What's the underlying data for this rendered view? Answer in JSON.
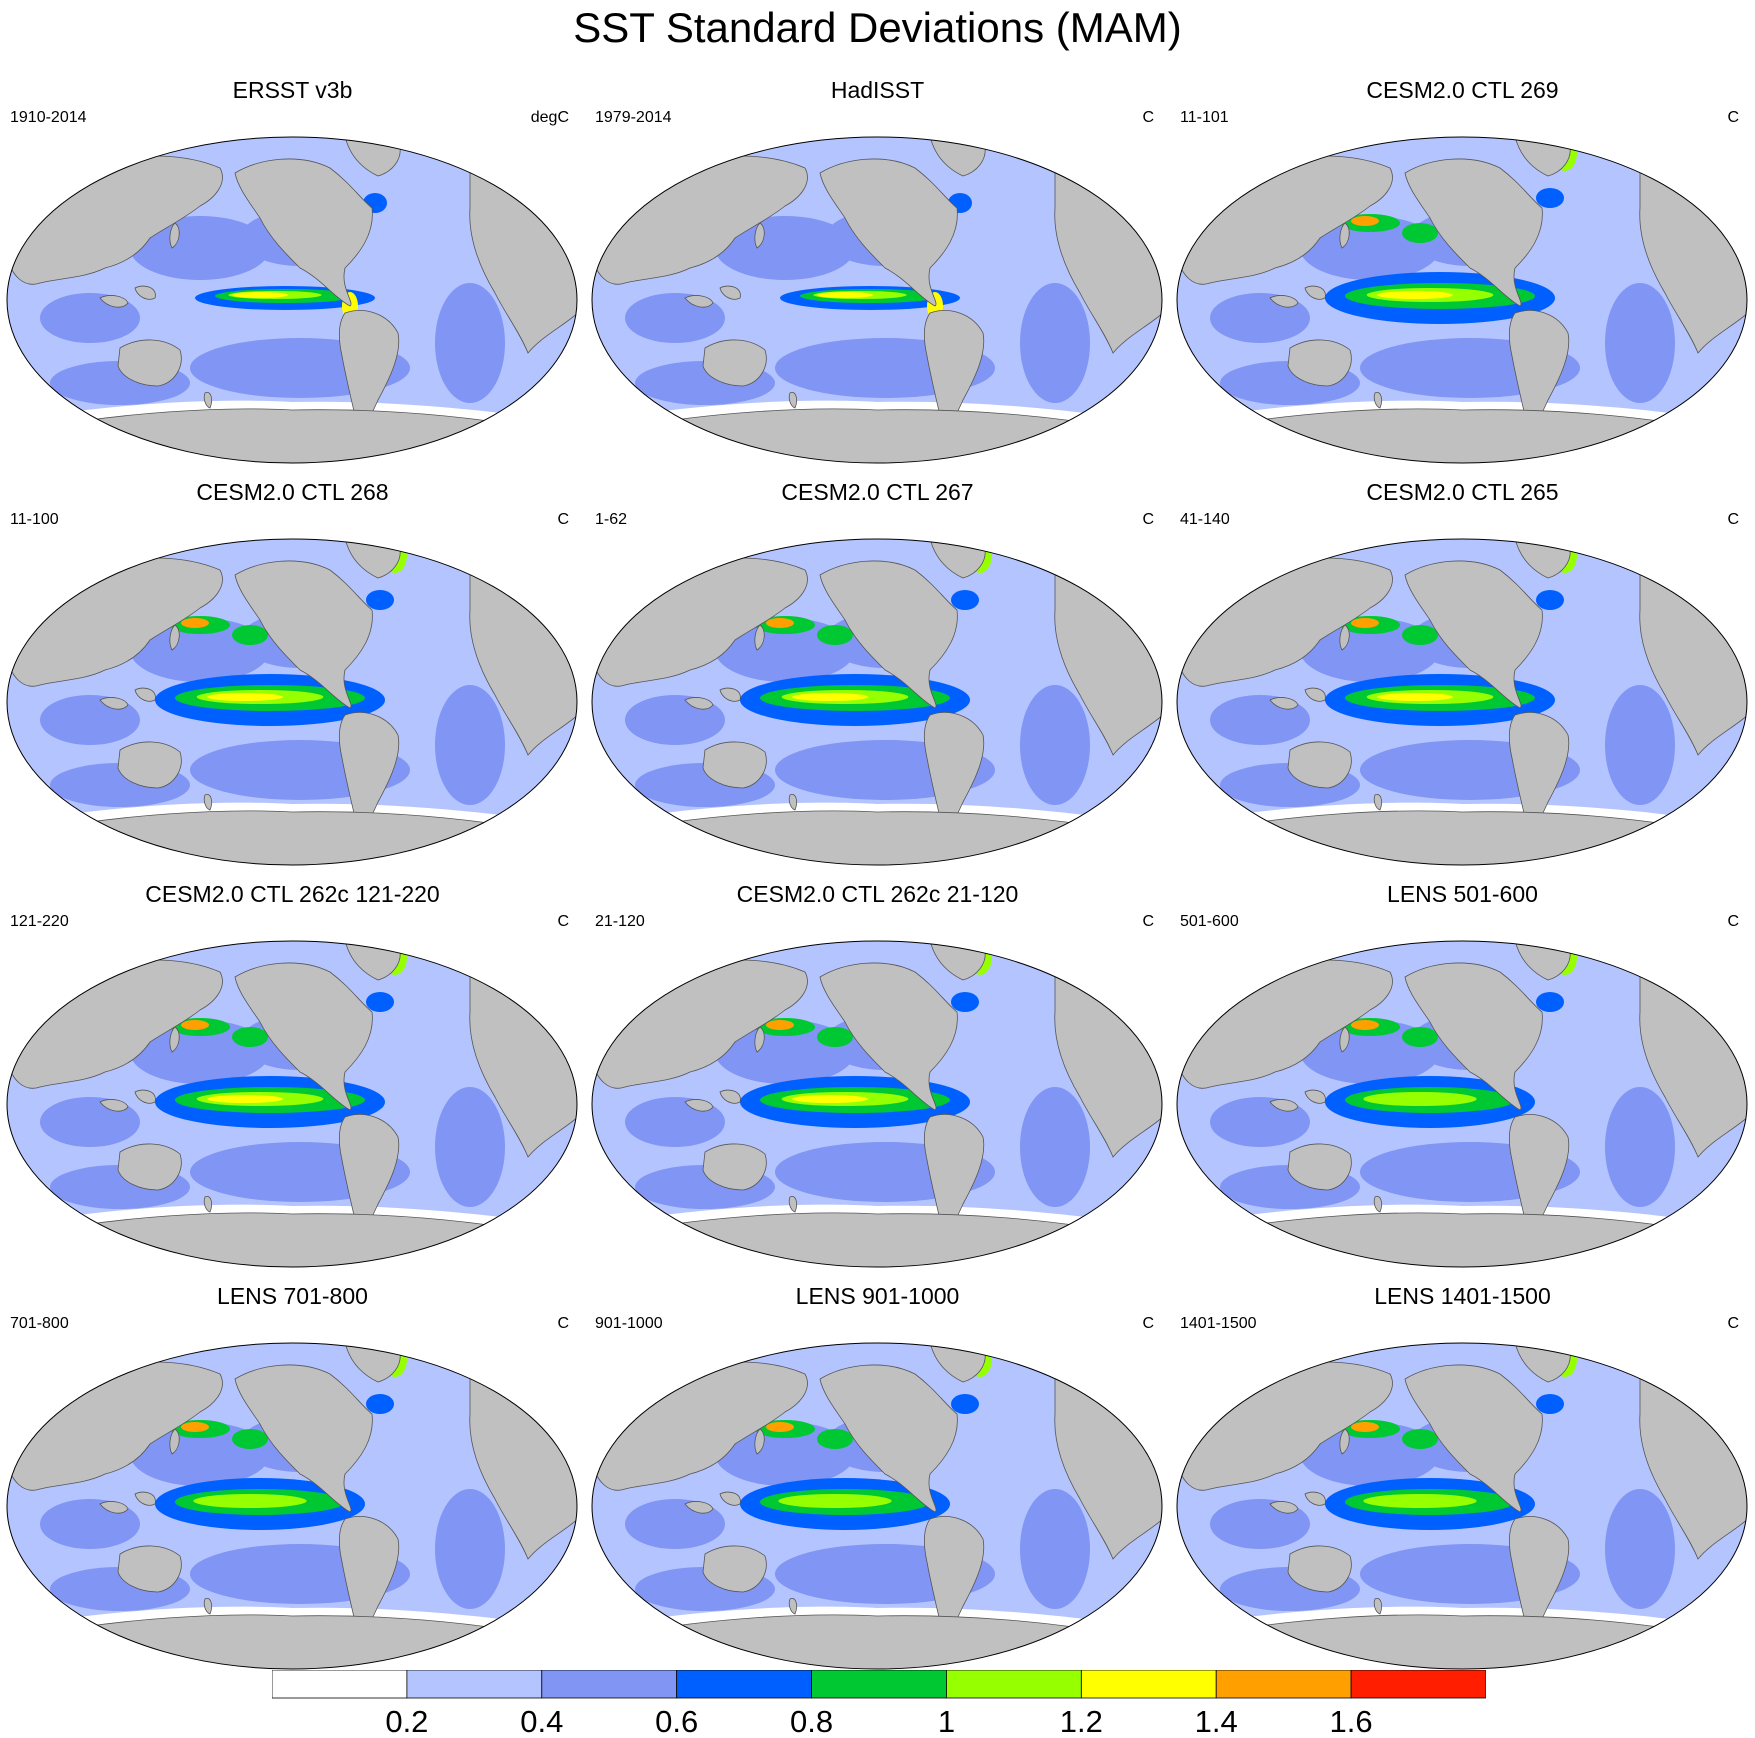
{
  "title": "SST Standard Deviations (MAM)",
  "panels": [
    {
      "title": "ERSST v3b",
      "period": "1910-2014",
      "unit": "degC"
    },
    {
      "title": "HadISST",
      "period": "1979-2014",
      "unit": "C"
    },
    {
      "title": "CESM2.0 CTL 269",
      "period": "11-101",
      "unit": "C"
    },
    {
      "title": "CESM2.0 CTL 268",
      "period": "11-100",
      "unit": "C"
    },
    {
      "title": "CESM2.0 CTL 267",
      "period": "1-62",
      "unit": "C"
    },
    {
      "title": "CESM2.0 CTL 265",
      "period": "41-140",
      "unit": "C"
    },
    {
      "title": "CESM2.0 CTL 262c 121-220",
      "period": "121-220",
      "unit": "C"
    },
    {
      "title": "CESM2.0 CTL 262c 21-120",
      "period": "21-120",
      "unit": "C"
    },
    {
      "title": "LENS 501-600",
      "period": "501-600",
      "unit": "C"
    },
    {
      "title": "LENS 701-800",
      "period": "701-800",
      "unit": "C"
    },
    {
      "title": "LENS 901-1000",
      "period": "901-1000",
      "unit": "C"
    },
    {
      "title": "LENS 1401-1500",
      "period": "1401-1500",
      "unit": "C"
    }
  ],
  "colorbar": {
    "colors": [
      "#ffffff",
      "#b4c4ff",
      "#8095f4",
      "#0060ff",
      "#00c832",
      "#96ff00",
      "#ffff00",
      "#ffa000",
      "#ff1e00"
    ],
    "labels": [
      "0.2",
      "0.4",
      "0.6",
      "0.8",
      "1",
      "1.2",
      "1.4",
      "1.6"
    ]
  },
  "colors": {
    "land": "#c0c0c0",
    "coast": "#555555"
  }
}
